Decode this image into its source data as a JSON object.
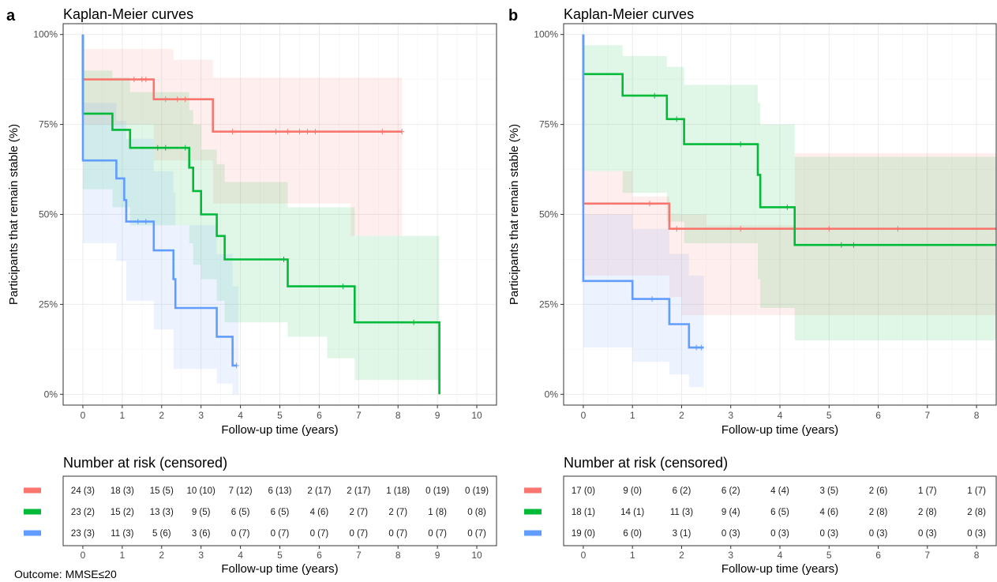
{
  "colors": {
    "red": "#F8766D",
    "green": "#00BA38",
    "blue": "#619CFF"
  },
  "footnote": "Outcome: MMSE≤20",
  "chart_data": [
    {
      "panel_letter": "a",
      "type": "line",
      "subtype": "kaplan-meier",
      "title": "Kaplan-Meier curves",
      "xlabel": "Follow-up time (years)",
      "ylabel": "Participants that remain stable (%)",
      "xlim": [
        -0.5,
        10.5
      ],
      "ylim": [
        -0.03,
        1.03
      ],
      "xticks": [
        0,
        1,
        2,
        3,
        4,
        5,
        6,
        7,
        8,
        9,
        10
      ],
      "yticks": [
        0,
        0.25,
        0.5,
        0.75,
        1.0
      ],
      "ytick_labels": [
        "0%",
        "25%",
        "50%",
        "75%",
        "100%"
      ],
      "grid": true,
      "series": [
        {
          "color": "red",
          "steps": [
            [
              0,
              1.0
            ],
            [
              0,
              0.875
            ],
            [
              1.8,
              0.82
            ],
            [
              3.3,
              0.73
            ],
            [
              8.1,
              0.73
            ]
          ],
          "ci_lower": [
            [
              0,
              0.75
            ],
            [
              1.8,
              0.65
            ],
            [
              3.3,
              0.53
            ],
            [
              5.2,
              0.53
            ],
            [
              6.8,
              0.44
            ],
            [
              8.1,
              0.44
            ]
          ],
          "ci_upper": [
            [
              0,
              0.96
            ],
            [
              1.8,
              0.96
            ],
            [
              2.3,
              0.93
            ],
            [
              3.3,
              0.88
            ],
            [
              8.1,
              0.88
            ]
          ],
          "censored": [
            1.3,
            1.5,
            1.6,
            2.1,
            2.4,
            2.6,
            3.8,
            4.9,
            5.2,
            5.5,
            5.7,
            5.9,
            7.6,
            8.1
          ]
        },
        {
          "color": "green",
          "steps": [
            [
              0,
              1.0
            ],
            [
              0,
              0.78
            ],
            [
              0.75,
              0.735
            ],
            [
              1.2,
              0.685
            ],
            [
              2.7,
              0.63
            ],
            [
              2.8,
              0.565
            ],
            [
              3.0,
              0.5
            ],
            [
              3.4,
              0.44
            ],
            [
              3.6,
              0.375
            ],
            [
              5.2,
              0.3
            ],
            [
              6.9,
              0.2
            ],
            [
              9.05,
              0.0
            ]
          ],
          "ci_lower": [
            [
              0,
              0.57
            ],
            [
              0.75,
              0.52
            ],
            [
              1.2,
              0.47
            ],
            [
              2.7,
              0.42
            ],
            [
              2.8,
              0.36
            ],
            [
              3.0,
              0.32
            ],
            [
              3.4,
              0.26
            ],
            [
              3.6,
              0.2
            ],
            [
              5.2,
              0.16
            ],
            [
              6.2,
              0.1
            ],
            [
              6.9,
              0.04
            ],
            [
              9.05,
              0.04
            ]
          ],
          "ci_upper": [
            [
              0,
              0.9
            ],
            [
              0.75,
              0.88
            ],
            [
              1.2,
              0.84
            ],
            [
              2.7,
              0.79
            ],
            [
              2.8,
              0.75
            ],
            [
              3.0,
              0.68
            ],
            [
              3.4,
              0.64
            ],
            [
              3.6,
              0.59
            ],
            [
              5.2,
              0.52
            ],
            [
              6.9,
              0.44
            ],
            [
              9.05,
              0.44
            ]
          ],
          "censored": [
            1.9,
            2.1,
            2.6,
            5.1,
            6.6,
            8.4
          ]
        },
        {
          "color": "blue",
          "steps": [
            [
              0,
              1.0
            ],
            [
              0,
              0.65
            ],
            [
              0.85,
              0.6
            ],
            [
              1.05,
              0.54
            ],
            [
              1.1,
              0.48
            ],
            [
              1.8,
              0.4
            ],
            [
              2.3,
              0.32
            ],
            [
              2.35,
              0.24
            ],
            [
              3.4,
              0.16
            ],
            [
              3.8,
              0.08
            ],
            [
              3.9,
              0.08
            ]
          ],
          "ci_lower": [
            [
              0,
              0.42
            ],
            [
              0.85,
              0.37
            ],
            [
              1.1,
              0.26
            ],
            [
              1.8,
              0.18
            ],
            [
              2.3,
              0.07
            ],
            [
              3.4,
              0.03
            ],
            [
              3.8,
              0.0
            ],
            [
              3.95,
              0.0
            ]
          ],
          "ci_upper": [
            [
              0,
              0.81
            ],
            [
              0.85,
              0.76
            ],
            [
              1.1,
              0.71
            ],
            [
              1.8,
              0.62
            ],
            [
              2.3,
              0.56
            ],
            [
              2.35,
              0.47
            ],
            [
              3.4,
              0.39
            ],
            [
              3.8,
              0.3
            ],
            [
              3.95,
              0.3
            ]
          ],
          "censored": [
            1.4,
            1.6,
            3.9
          ]
        }
      ],
      "risk_table": {
        "title": "Number at risk (censored)",
        "xlabel": "Follow-up time (years)",
        "times": [
          0,
          1,
          2,
          3,
          4,
          5,
          6,
          7,
          8,
          9,
          10
        ],
        "rows": [
          {
            "color": "red",
            "cells": [
              "24 (3)",
              "18 (3)",
              "15 (5)",
              "10 (10)",
              "7 (12)",
              "6 (13)",
              "2 (17)",
              "2 (17)",
              "1 (18)",
              "0 (19)",
              "0 (19)"
            ]
          },
          {
            "color": "green",
            "cells": [
              "23 (2)",
              "15 (2)",
              "13 (3)",
              "9 (5)",
              "6 (5)",
              "6 (5)",
              "4 (6)",
              "2 (7)",
              "2 (7)",
              "1 (8)",
              "0 (8)"
            ]
          },
          {
            "color": "blue",
            "cells": [
              "23 (3)",
              "11 (3)",
              "5 (6)",
              "3 (6)",
              "0 (7)",
              "0 (7)",
              "0 (7)",
              "0 (7)",
              "0 (7)",
              "0 (7)",
              "0 (7)"
            ]
          }
        ]
      }
    },
    {
      "panel_letter": "b",
      "type": "line",
      "subtype": "kaplan-meier",
      "title": "Kaplan-Meier curves",
      "xlabel": "Follow-up time (years)",
      "ylabel": "Participants that remain stable (%)",
      "xlim": [
        -0.4,
        8.4
      ],
      "ylim": [
        -0.03,
        1.03
      ],
      "xticks": [
        0,
        1,
        2,
        3,
        4,
        5,
        6,
        7,
        8
      ],
      "yticks": [
        0,
        0.25,
        0.5,
        0.75,
        1.0
      ],
      "ytick_labels": [
        "0%",
        "25%",
        "50%",
        "75%",
        "100%"
      ],
      "grid": true,
      "series": [
        {
          "color": "red",
          "steps": [
            [
              0,
              1.0
            ],
            [
              0,
              0.53
            ],
            [
              1.75,
              0.46
            ],
            [
              8.4,
              0.46
            ]
          ],
          "ci_lower": [
            [
              0,
              0.33
            ],
            [
              1.75,
              0.27
            ],
            [
              2.0,
              0.22
            ],
            [
              4.5,
              0.22
            ],
            [
              8.4,
              0.22
            ]
          ],
          "ci_upper": [
            [
              0,
              0.62
            ],
            [
              0.9,
              0.62
            ],
            [
              1.0,
              0.55
            ],
            [
              1.75,
              0.5
            ],
            [
              2.5,
              0.47
            ],
            [
              4.3,
              0.67
            ],
            [
              8.4,
              0.67
            ]
          ],
          "censored": [
            1.35,
            1.9,
            3.2,
            4.3,
            5.0,
            6.4
          ]
        },
        {
          "color": "green",
          "steps": [
            [
              0,
              1.0
            ],
            [
              0,
              0.89
            ],
            [
              0.8,
              0.83
            ],
            [
              1.7,
              0.765
            ],
            [
              2.05,
              0.695
            ],
            [
              3.55,
              0.61
            ],
            [
              3.6,
              0.52
            ],
            [
              4.3,
              0.415
            ],
            [
              8.4,
              0.415
            ]
          ],
          "ci_lower": [
            [
              0,
              0.62
            ],
            [
              0.8,
              0.56
            ],
            [
              1.7,
              0.48
            ],
            [
              2.05,
              0.42
            ],
            [
              3.55,
              0.32
            ],
            [
              3.6,
              0.24
            ],
            [
              4.3,
              0.15
            ],
            [
              8.4,
              0.15
            ]
          ],
          "ci_upper": [
            [
              0,
              0.97
            ],
            [
              0.4,
              0.97
            ],
            [
              0.8,
              0.94
            ],
            [
              1.7,
              0.91
            ],
            [
              2.05,
              0.86
            ],
            [
              3.55,
              0.81
            ],
            [
              3.6,
              0.75
            ],
            [
              4.3,
              0.66
            ],
            [
              8.4,
              0.66
            ]
          ],
          "censored": [
            1.45,
            1.9,
            3.2,
            4.15,
            5.25,
            5.5,
            8.4
          ]
        },
        {
          "color": "blue",
          "steps": [
            [
              0,
              1.0
            ],
            [
              0,
              0.315
            ],
            [
              1.0,
              0.265
            ],
            [
              1.75,
              0.195
            ],
            [
              2.15,
              0.13
            ],
            [
              2.45,
              0.13
            ]
          ],
          "ci_lower": [
            [
              0,
              0.13
            ],
            [
              1.0,
              0.09
            ],
            [
              1.75,
              0.055
            ],
            [
              2.15,
              0.02
            ],
            [
              2.45,
              0.02
            ]
          ],
          "ci_upper": [
            [
              0,
              0.5
            ],
            [
              1.0,
              0.46
            ],
            [
              1.75,
              0.39
            ],
            [
              2.15,
              0.33
            ],
            [
              2.45,
              0.33
            ]
          ],
          "censored": [
            1.4,
            2.3,
            2.4
          ]
        }
      ],
      "risk_table": {
        "title": "Number at risk (censored)",
        "xlabel": "Follow-up time (years)",
        "times": [
          0,
          1,
          2,
          3,
          4,
          5,
          6,
          7,
          8
        ],
        "rows": [
          {
            "color": "red",
            "cells": [
              "17 (0)",
              "9 (0)",
              "6 (2)",
              "6 (2)",
              "4 (4)",
              "3 (5)",
              "2 (6)",
              "1 (7)",
              "1 (7)"
            ]
          },
          {
            "color": "green",
            "cells": [
              "18 (1)",
              "14 (1)",
              "11 (3)",
              "9 (4)",
              "6 (5)",
              "4 (6)",
              "2 (8)",
              "2 (8)",
              "2 (8)"
            ]
          },
          {
            "color": "blue",
            "cells": [
              "19 (0)",
              "6 (0)",
              "3 (1)",
              "0 (3)",
              "0 (3)",
              "0 (3)",
              "0 (3)",
              "0 (3)",
              "0 (3)"
            ]
          }
        ]
      }
    }
  ]
}
